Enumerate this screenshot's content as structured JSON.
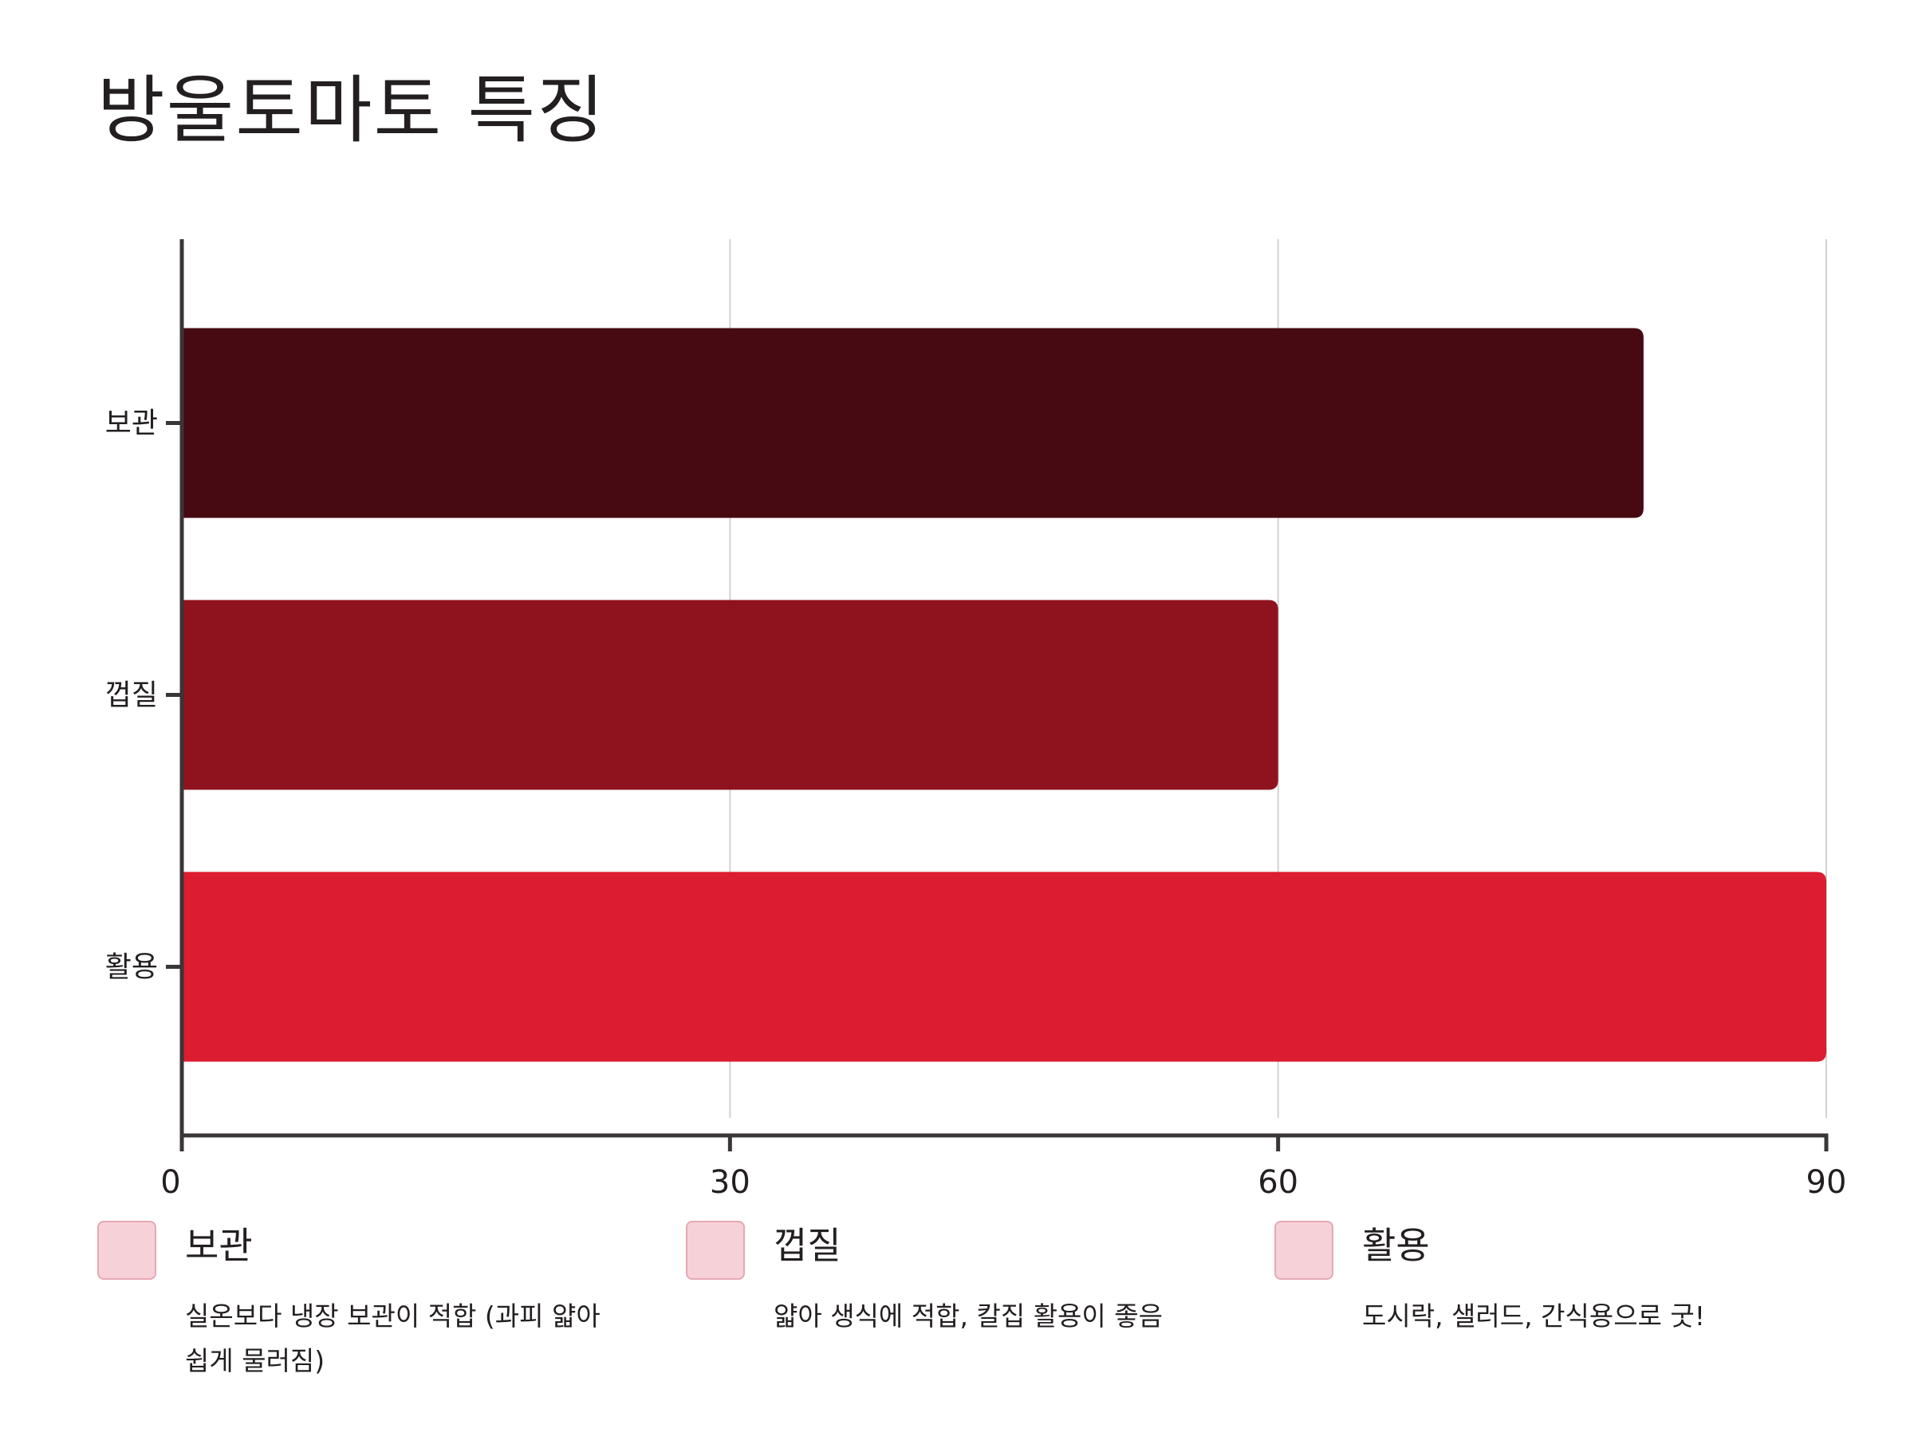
{
  "title": "방울토마토 특징",
  "chart_data": {
    "type": "bar",
    "orientation": "horizontal",
    "title": "방울토마토 특징",
    "xlabel": "",
    "ylabel": "",
    "categories": [
      "보관",
      "껍질",
      "활용"
    ],
    "values": [
      80,
      60,
      90
    ],
    "colors": [
      "#470a12",
      "#8f131f",
      "#dc1c30"
    ],
    "xlim": [
      0,
      90
    ],
    "xticks": [
      0,
      30,
      60,
      90
    ],
    "grid": "vertical",
    "legend_position": "bottom"
  },
  "legend": [
    {
      "name": "보관",
      "desc": "실온보다 냉장 보관이 적합 (과피 얇아 쉽게 물러짐)"
    },
    {
      "name": "껍질",
      "desc": "얇아 생식에 적합, 칼집 활용이 좋음"
    },
    {
      "name": "활용",
      "desc": "도시락, 샐러드, 간식용으로 굿!"
    }
  ],
  "colors": {
    "axis": "#3a3536",
    "grid": "#d3d1d1",
    "legend_swatch": "#f7d1d8",
    "legend_swatch_border": "#e4a9b4"
  }
}
